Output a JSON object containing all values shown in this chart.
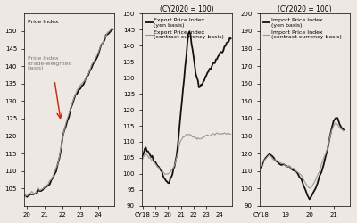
{
  "panel1": {
    "ylim": [
      100,
      155
    ],
    "yticks": [
      105,
      110,
      115,
      120,
      125,
      130,
      135,
      140,
      145,
      150
    ],
    "xtick_labels": [
      "20",
      "21",
      "22",
      "23",
      "24"
    ],
    "legend1": "Price Index",
    "legend2": "Price Index\n(trade-weighted\nbasis)"
  },
  "panel2": {
    "title": "(CY2020 = 100)",
    "ylim": [
      90,
      150
    ],
    "yticks": [
      90,
      95,
      100,
      105,
      110,
      115,
      120,
      125,
      130,
      135,
      140,
      145,
      150
    ],
    "xtick_labels": [
      "CY18",
      "19",
      "20",
      "21",
      "22",
      "23",
      "24"
    ],
    "legend1": "Export Price Index\n(yen basis)",
    "legend2": "Export Price Index\n(contract currency basis)"
  },
  "panel3": {
    "title": "(CY2020 = 100)",
    "ylim": [
      90,
      200
    ],
    "yticks": [
      90,
      100,
      110,
      120,
      130,
      140,
      150,
      160,
      170,
      180,
      190,
      200
    ],
    "xtick_labels": [
      "CY18",
      "19",
      "20",
      "21"
    ],
    "legend1": "Import Price Index\n(yen basis)",
    "legend2": "Import Price Index\n(contract currency basis)"
  },
  "bg_color": "#ede8e3",
  "line_color_thick": "#111111",
  "line_color_thin": "#999999",
  "arrow_color": "#cc2200"
}
